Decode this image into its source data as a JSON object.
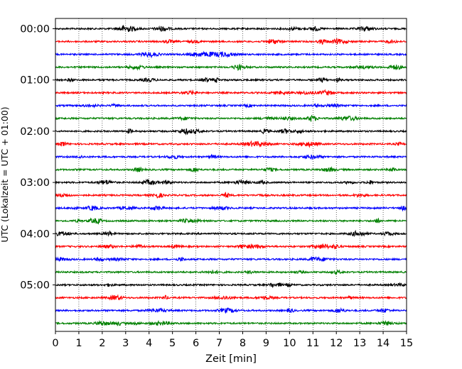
{
  "chart_data": {
    "type": "line",
    "title": "",
    "xlabel": "Zeit  [min]",
    "ylabel": "UTC (Lokalzeit = UTC + 01:00)",
    "xlim": [
      0,
      15
    ],
    "x_ticks": [
      "0",
      "1",
      "2",
      "3",
      "4",
      "5",
      "6",
      "7",
      "8",
      "9",
      "10",
      "11",
      "12",
      "13",
      "14",
      "15"
    ],
    "y_ticks": [
      "00:00",
      "01:00",
      "02:00",
      "03:00",
      "04:00",
      "05:00"
    ],
    "grid": "vertical dotted lines at each minute",
    "legend": "none",
    "trace_interval_minutes": 15,
    "trace_colors_cycle": [
      "#000000",
      "#ff0000",
      "#0000ff",
      "#008000"
    ],
    "series": [
      {
        "start": "00:00",
        "color": "#000000"
      },
      {
        "start": "00:15",
        "color": "#ff0000"
      },
      {
        "start": "00:30",
        "color": "#0000ff"
      },
      {
        "start": "00:45",
        "color": "#008000"
      },
      {
        "start": "01:00",
        "color": "#000000"
      },
      {
        "start": "01:15",
        "color": "#ff0000"
      },
      {
        "start": "01:30",
        "color": "#0000ff"
      },
      {
        "start": "01:45",
        "color": "#008000"
      },
      {
        "start": "02:00",
        "color": "#000000"
      },
      {
        "start": "02:15",
        "color": "#ff0000"
      },
      {
        "start": "02:30",
        "color": "#0000ff"
      },
      {
        "start": "02:45",
        "color": "#008000"
      },
      {
        "start": "03:00",
        "color": "#000000"
      },
      {
        "start": "03:15",
        "color": "#ff0000"
      },
      {
        "start": "03:30",
        "color": "#0000ff"
      },
      {
        "start": "03:45",
        "color": "#008000"
      },
      {
        "start": "04:00",
        "color": "#000000"
      },
      {
        "start": "04:15",
        "color": "#ff0000"
      },
      {
        "start": "04:30",
        "color": "#0000ff"
      },
      {
        "start": "04:45",
        "color": "#008000"
      },
      {
        "start": "05:00",
        "color": "#000000"
      },
      {
        "start": "05:15",
        "color": "#ff0000"
      },
      {
        "start": "05:30",
        "color": "#0000ff"
      },
      {
        "start": "05:45",
        "color": "#008000"
      }
    ]
  }
}
